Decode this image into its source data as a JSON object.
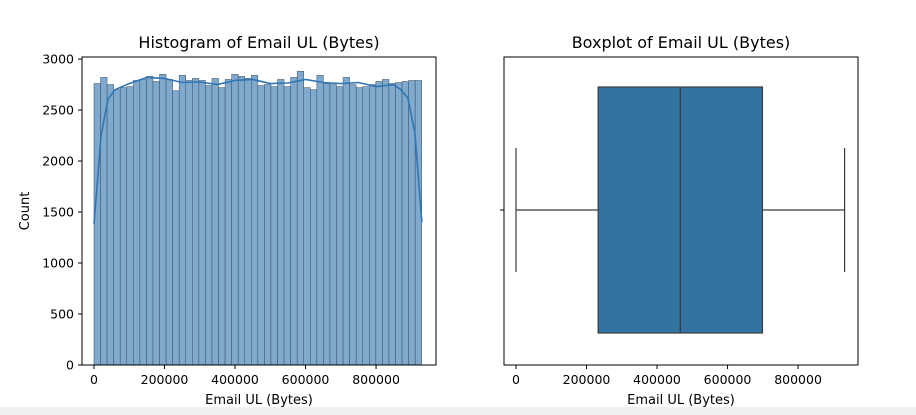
{
  "chart_data": [
    {
      "type": "bar",
      "title": "Histogram of Email UL (Bytes)",
      "xlabel": "Email UL (Bytes)",
      "ylabel": "Count",
      "xlim": [
        -34000,
        970000
      ],
      "ylim": [
        0,
        3020
      ],
      "xticks": [
        0,
        200000,
        400000,
        600000,
        800000
      ],
      "xtick_labels": [
        "0",
        "200000",
        "400000",
        "600000",
        "800000"
      ],
      "yticks": [
        0,
        500,
        1000,
        1500,
        2000,
        2500,
        3000
      ],
      "ytick_labels": [
        "0",
        "500",
        "1000",
        "1500",
        "2000",
        "2500",
        "3000"
      ],
      "bin_start": 0,
      "bin_width": 18590,
      "values": [
        2760,
        2820,
        2750,
        2700,
        2720,
        2730,
        2790,
        2800,
        2830,
        2780,
        2850,
        2800,
        2690,
        2840,
        2790,
        2810,
        2790,
        2740,
        2810,
        2720,
        2800,
        2850,
        2830,
        2810,
        2840,
        2740,
        2750,
        2730,
        2800,
        2730,
        2820,
        2880,
        2720,
        2700,
        2840,
        2760,
        2750,
        2730,
        2820,
        2750,
        2720,
        2730,
        2750,
        2780,
        2800,
        2760,
        2770,
        2780,
        2790,
        2790
      ],
      "kde_x": [
        0,
        20000,
        40000,
        60000,
        80000,
        100000,
        150000,
        200000,
        250000,
        300000,
        350000,
        400000,
        450000,
        500000,
        550000,
        600000,
        650000,
        700000,
        750000,
        800000,
        850000,
        870000,
        890000,
        910000,
        930000
      ],
      "kde_y": [
        1380,
        2250,
        2610,
        2700,
        2730,
        2760,
        2820,
        2810,
        2770,
        2775,
        2750,
        2790,
        2800,
        2760,
        2765,
        2800,
        2770,
        2760,
        2770,
        2730,
        2750,
        2700,
        2620,
        2280,
        1400
      ],
      "bar_color": "#7fa9cd",
      "bar_edge": "#3d4f63",
      "kde_color": "#2f76b3"
    },
    {
      "type": "boxplot",
      "title": "Boxplot of Email UL (Bytes)",
      "xlabel": "Email UL (Bytes)",
      "xlim": [
        -34000,
        970000
      ],
      "xticks": [
        0,
        200000,
        400000,
        600000,
        800000
      ],
      "xtick_labels": [
        "0",
        "200000",
        "400000",
        "600000",
        "800000"
      ],
      "min": 0,
      "q1": 233000,
      "median": 466000,
      "q3": 699000,
      "max": 932000,
      "box_color": "#3274a1",
      "line_color": "#3c3c3c"
    }
  ]
}
